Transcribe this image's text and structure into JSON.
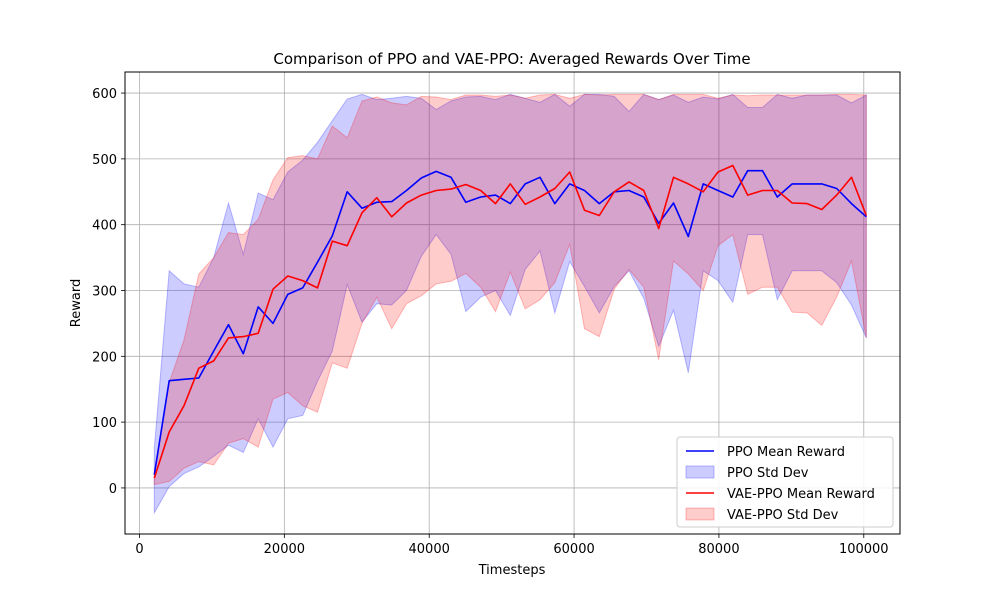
{
  "chart_data": {
    "type": "line",
    "title": "Comparison of PPO and VAE-PPO: Averaged Rewards Over Time",
    "xlabel": "Timesteps",
    "ylabel": "Reward",
    "xlim": [
      -2000,
      105000
    ],
    "ylim": [
      -70,
      632
    ],
    "xticks": [
      0,
      20000,
      40000,
      60000,
      80000,
      100000
    ],
    "yticks": [
      0,
      100,
      200,
      300,
      400,
      500,
      600
    ],
    "grid": true,
    "legend_position": "bottom-right",
    "x": [
      2048,
      4096,
      6144,
      8192,
      10240,
      12288,
      14336,
      16384,
      18432,
      20480,
      22528,
      24576,
      26624,
      28672,
      30720,
      32768,
      34816,
      36864,
      38912,
      40960,
      43008,
      45056,
      47104,
      49152,
      51200,
      53248,
      55296,
      57344,
      59392,
      61440,
      63488,
      65536,
      67584,
      69632,
      71680,
      73728,
      75776,
      77824,
      79872,
      81920,
      83968,
      86016,
      88064,
      90112,
      92160,
      94208,
      96256,
      98304,
      100352
    ],
    "series": [
      {
        "name": "PPO Mean Reward",
        "color": "#0000ff",
        "mean": [
          20,
          163,
          165,
          167,
          208,
          248,
          204,
          275,
          250,
          294,
          304,
          343,
          383,
          450,
          425,
          434,
          435,
          452,
          471,
          481,
          472,
          434,
          442,
          445,
          432,
          462,
          472,
          432,
          462,
          452,
          432,
          450,
          452,
          442,
          402,
          433,
          382,
          462,
          452,
          442,
          482,
          482,
          442,
          462,
          462,
          462,
          455,
          432,
          412
        ],
        "std_label": "PPO Std Dev",
        "std_color": "#0000ff",
        "upper": [
          60,
          330,
          310,
          305,
          350,
          433,
          355,
          448,
          438,
          480,
          498,
          525,
          558,
          591,
          598,
          590,
          592,
          595,
          592,
          575,
          588,
          594,
          595,
          590,
          598,
          592,
          586,
          598,
          580,
          598,
          598,
          595,
          572,
          598,
          590,
          597,
          586,
          594,
          591,
          598,
          578,
          578,
          598,
          592,
          597,
          597,
          597,
          585,
          597
        ],
        "lower": [
          -38,
          2,
          22,
          32,
          48,
          65,
          54,
          105,
          62,
          105,
          110,
          162,
          208,
          309,
          252,
          280,
          278,
          300,
          352,
          385,
          355,
          268,
          290,
          300,
          262,
          332,
          360,
          266,
          344,
          306,
          266,
          306,
          330,
          288,
          215,
          270,
          175,
          330,
          315,
          282,
          385,
          385,
          286,
          330,
          330,
          330,
          312,
          278,
          228
        ]
      },
      {
        "name": "VAE-PPO Mean Reward",
        "color": "#ff0000",
        "mean": [
          15,
          85,
          125,
          182,
          193,
          228,
          230,
          235,
          302,
          322,
          315,
          304,
          375,
          368,
          418,
          441,
          412,
          433,
          445,
          452,
          454,
          461,
          452,
          432,
          462,
          431,
          442,
          455,
          480,
          422,
          414,
          450,
          465,
          452,
          394,
          472,
          462,
          450,
          480,
          490,
          445,
          452,
          452,
          433,
          432,
          423,
          445,
          472,
          414
        ],
        "std_label": "VAE-PPO Std Dev",
        "std_color": "#ff0000",
        "upper": [
          25,
          160,
          225,
          325,
          350,
          388,
          385,
          408,
          468,
          502,
          505,
          500,
          550,
          532,
          588,
          594,
          585,
          582,
          595,
          594,
          590,
          597,
          597,
          595,
          597,
          592,
          597,
          598,
          592,
          598,
          597,
          598,
          598,
          598,
          590,
          598,
          598,
          598,
          592,
          597,
          596,
          597,
          597,
          597,
          597,
          597,
          598,
          598,
          597
        ],
        "lower": [
          5,
          10,
          30,
          40,
          35,
          68,
          75,
          62,
          135,
          145,
          125,
          115,
          190,
          182,
          250,
          290,
          242,
          280,
          292,
          310,
          314,
          326,
          305,
          268,
          328,
          272,
          286,
          312,
          370,
          242,
          230,
          302,
          332,
          305,
          195,
          345,
          325,
          300,
          368,
          385,
          294,
          305,
          305,
          267,
          266,
          247,
          290,
          345,
          228
        ]
      }
    ]
  }
}
